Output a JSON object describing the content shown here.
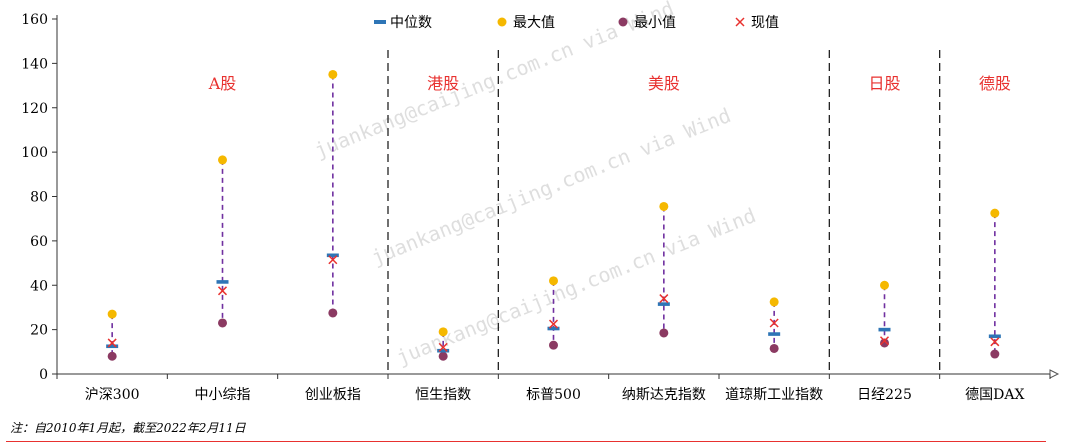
{
  "chart_data": {
    "type": "scatter",
    "categories": [
      "沪深300",
      "中小综指",
      "创业板指",
      "恒生指数",
      "标普500",
      "纳斯达克指数",
      "道琼斯工业指数",
      "日经225",
      "德国DAX"
    ],
    "series": [
      {
        "name": "中位数",
        "values": [
          12.5,
          41.5,
          53.5,
          10.5,
          20.5,
          31.5,
          18,
          20,
          17
        ]
      },
      {
        "name": "最大值",
        "values": [
          27,
          96.5,
          135,
          19,
          42,
          75.5,
          32.5,
          40,
          72.5
        ]
      },
      {
        "name": "最小值",
        "values": [
          8,
          23,
          27.5,
          8,
          13,
          18.5,
          11.5,
          14,
          9
        ]
      },
      {
        "name": "现值",
        "values": [
          14,
          37.5,
          51.5,
          12,
          22.5,
          34,
          23,
          15,
          14.5
        ]
      }
    ],
    "ylim": [
      0,
      160
    ],
    "yticks": [
      "0",
      "20",
      "40",
      "60",
      "80",
      "100",
      "120",
      "140",
      "160"
    ],
    "regions": [
      "A股",
      "港股",
      "美股",
      "日股",
      "德股"
    ],
    "legend_position": "top-center",
    "colors": {
      "median": "#2e75b6",
      "max": "#f5b800",
      "min": "#8b3a62",
      "current": "#e8312f",
      "range_line": "#7030a0",
      "region_label": "#e8312f"
    }
  },
  "watermark": "juankang@caijing.com.cn via Wind",
  "note": "注：自2010年1月起，截至2022年2月11日"
}
